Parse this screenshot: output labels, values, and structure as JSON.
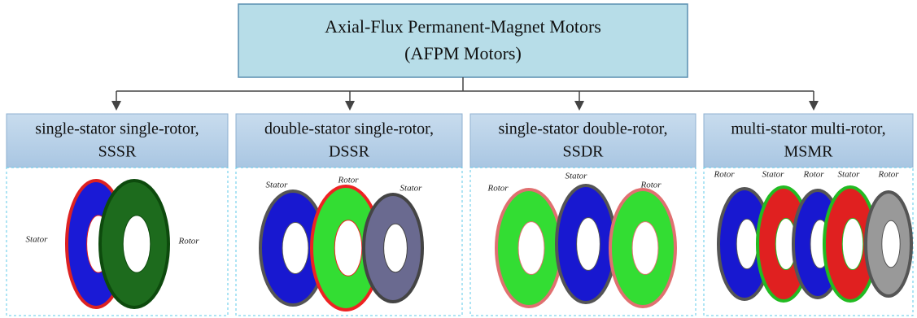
{
  "root": {
    "lines": [
      "Axial-Flux Permanent-Magnet Motors",
      "(AFPM Motors)"
    ]
  },
  "nodes": [
    {
      "lines": [
        "single-stator single-rotor,",
        "SSSR"
      ],
      "labels": [
        "Stator",
        "Rotor"
      ]
    },
    {
      "lines": [
        "double-stator single-rotor,",
        "DSSR"
      ],
      "labels": [
        "Stator",
        "Rotor",
        "Stator"
      ]
    },
    {
      "lines": [
        "single-stator double-rotor,",
        "SSDR"
      ],
      "labels": [
        "Rotor",
        "Stator",
        "Rotor"
      ]
    },
    {
      "lines": [
        "multi-stator multi-rotor,",
        "MSMR"
      ],
      "labels": [
        "Rotor",
        "Stator",
        "Rotor",
        "Stator",
        "Rotor"
      ]
    }
  ]
}
